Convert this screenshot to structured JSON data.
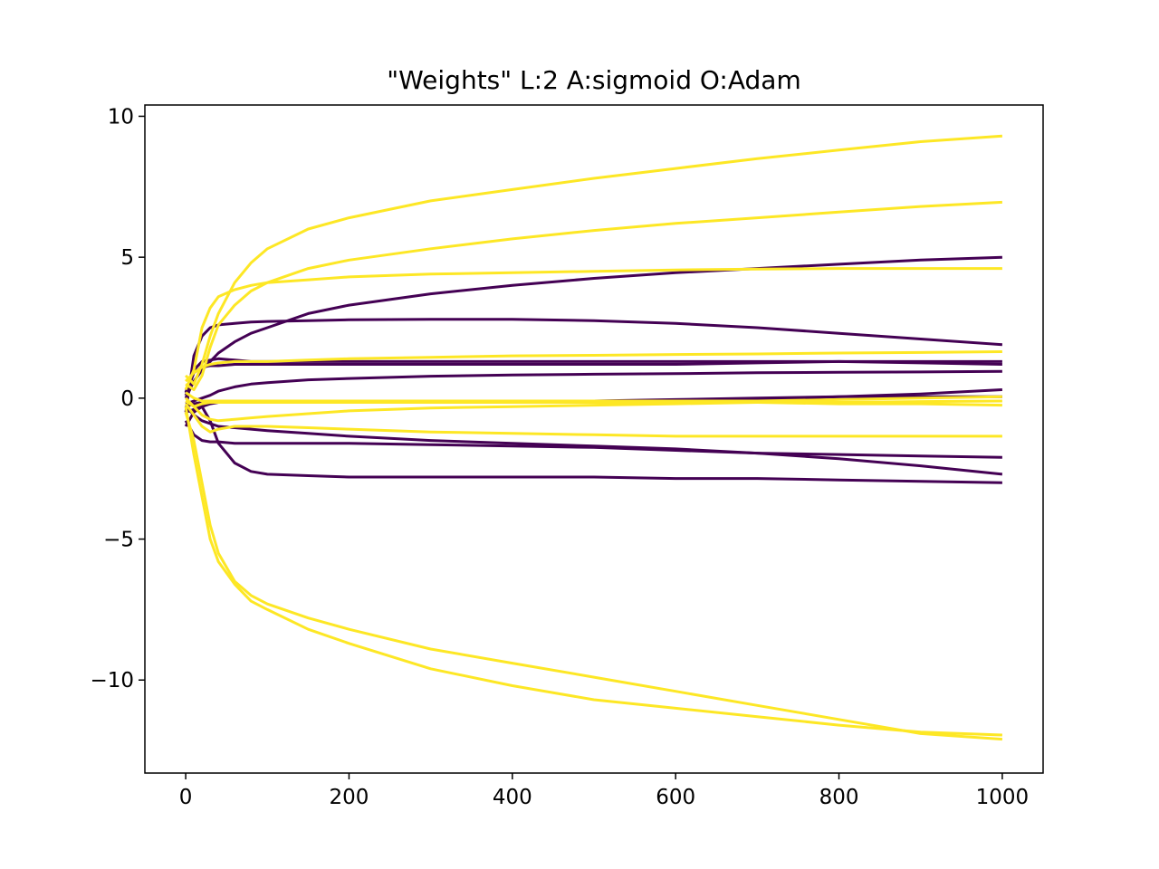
{
  "chart_data": {
    "type": "line",
    "title": "\"Weights\" L:2 A:sigmoid O:Adam",
    "xlabel": "",
    "ylabel": "",
    "xlim": [
      -50,
      1050
    ],
    "ylim": [
      -13.3,
      10.4
    ],
    "xticks": [
      0,
      200,
      400,
      600,
      800,
      1000
    ],
    "xtick_labels": [
      "0",
      "200",
      "400",
      "600",
      "800",
      "1000"
    ],
    "yticks": [
      10,
      5,
      0,
      -5,
      -10
    ],
    "ytick_labels": [
      "10",
      "5",
      "0",
      "−5",
      "−10"
    ],
    "grid": false,
    "legend": "none",
    "colors": {
      "purple": "#440154",
      "yellow": "#fde725"
    },
    "sample_x": [
      0,
      10,
      20,
      30,
      40,
      60,
      80,
      100,
      150,
      200,
      300,
      400,
      500,
      600,
      700,
      800,
      900,
      1000
    ],
    "series": [
      {
        "color": "purple",
        "values": [
          -0.5,
          1.5,
          2.2,
          2.5,
          2.6,
          2.65,
          2.7,
          2.72,
          2.75,
          2.78,
          2.8,
          2.8,
          2.75,
          2.65,
          2.5,
          2.3,
          2.1,
          1.9
        ]
      },
      {
        "color": "purple",
        "values": [
          0.0,
          0.6,
          1.0,
          1.3,
          1.6,
          2.0,
          2.3,
          2.5,
          3.0,
          3.3,
          3.7,
          4.0,
          4.25,
          4.45,
          4.6,
          4.75,
          4.9,
          5.0
        ]
      },
      {
        "color": "purple",
        "values": [
          0.2,
          1.0,
          1.3,
          1.35,
          1.4,
          1.35,
          1.3,
          1.3,
          1.3,
          1.3,
          1.3,
          1.3,
          1.3,
          1.3,
          1.3,
          1.3,
          1.25,
          1.2
        ]
      },
      {
        "color": "purple",
        "values": [
          0.1,
          0.9,
          1.1,
          1.15,
          1.15,
          1.2,
          1.2,
          1.2,
          1.2,
          1.2,
          1.2,
          1.2,
          1.2,
          1.2,
          1.25,
          1.3,
          1.3,
          1.3
        ]
      },
      {
        "color": "purple",
        "values": [
          -0.2,
          -0.1,
          0.0,
          0.1,
          0.25,
          0.4,
          0.5,
          0.55,
          0.65,
          0.7,
          0.78,
          0.82,
          0.85,
          0.87,
          0.9,
          0.92,
          0.93,
          0.95
        ]
      },
      {
        "color": "purple",
        "values": [
          -0.3,
          -0.2,
          -0.15,
          -0.15,
          -0.15,
          -0.15,
          -0.15,
          -0.15,
          -0.15,
          -0.15,
          -0.15,
          -0.15,
          -0.15,
          -0.12,
          -0.05,
          0.05,
          0.15,
          0.3
        ]
      },
      {
        "color": "purple",
        "values": [
          -0.5,
          -0.4,
          -0.3,
          -0.2,
          -0.15,
          -0.15,
          -0.15,
          -0.15,
          -0.15,
          -0.15,
          -0.1,
          -0.1,
          -0.1,
          -0.05,
          0.0,
          0.05,
          0.05,
          0.05
        ]
      },
      {
        "color": "purple",
        "values": [
          -0.3,
          -0.6,
          -0.8,
          -0.9,
          -1.0,
          -1.05,
          -1.1,
          -1.15,
          -1.25,
          -1.35,
          -1.5,
          -1.6,
          -1.7,
          -1.8,
          -1.95,
          -2.15,
          -2.4,
          -2.7
        ]
      },
      {
        "color": "purple",
        "values": [
          -0.8,
          -1.3,
          -1.5,
          -1.55,
          -1.55,
          -1.6,
          -1.6,
          -1.6,
          -1.6,
          -1.6,
          -1.65,
          -1.7,
          -1.75,
          -1.85,
          -1.95,
          -2.0,
          -2.05,
          -2.1
        ]
      },
      {
        "color": "purple",
        "values": [
          -1.0,
          -0.5,
          -0.3,
          -0.8,
          -1.6,
          -2.3,
          -2.6,
          -2.7,
          -2.75,
          -2.8,
          -2.8,
          -2.8,
          -2.8,
          -2.85,
          -2.85,
          -2.9,
          -2.95,
          -3.0
        ]
      },
      {
        "color": "yellow",
        "values": [
          0.8,
          0.5,
          1.2,
          2.2,
          3.0,
          4.1,
          4.8,
          5.3,
          6.0,
          6.4,
          7.0,
          7.4,
          7.8,
          8.15,
          8.5,
          8.8,
          9.1,
          9.3
        ]
      },
      {
        "color": "yellow",
        "values": [
          0.5,
          0.3,
          0.8,
          1.8,
          2.6,
          3.3,
          3.8,
          4.1,
          4.6,
          4.9,
          5.3,
          5.65,
          5.95,
          6.2,
          6.4,
          6.6,
          6.8,
          6.95
        ]
      },
      {
        "color": "yellow",
        "values": [
          0.3,
          1.0,
          2.5,
          3.2,
          3.6,
          3.85,
          4.0,
          4.1,
          4.2,
          4.3,
          4.4,
          4.45,
          4.5,
          4.55,
          4.58,
          4.6,
          4.6,
          4.6
        ]
      },
      {
        "color": "yellow",
        "values": [
          0.6,
          0.9,
          1.1,
          1.2,
          1.25,
          1.3,
          1.3,
          1.3,
          1.35,
          1.4,
          1.45,
          1.5,
          1.52,
          1.55,
          1.57,
          1.6,
          1.62,
          1.65
        ]
      },
      {
        "color": "yellow",
        "values": [
          0.2,
          0.0,
          -0.1,
          -0.1,
          -0.1,
          -0.1,
          -0.1,
          -0.1,
          -0.1,
          -0.1,
          -0.1,
          -0.1,
          -0.1,
          -0.1,
          -0.1,
          -0.05,
          0.0,
          0.05
        ]
      },
      {
        "color": "yellow",
        "values": [
          -0.1,
          -0.3,
          -0.2,
          -0.15,
          -0.15,
          -0.15,
          -0.15,
          -0.15,
          -0.15,
          -0.15,
          -0.15,
          -0.15,
          -0.15,
          -0.15,
          -0.15,
          -0.2,
          -0.2,
          -0.25
        ]
      },
      {
        "color": "yellow",
        "values": [
          0.0,
          -0.3,
          -0.6,
          -0.75,
          -0.8,
          -0.75,
          -0.7,
          -0.65,
          -0.55,
          -0.45,
          -0.35,
          -0.3,
          -0.25,
          -0.2,
          -0.15,
          -0.15,
          -0.12,
          -0.1
        ]
      },
      {
        "color": "yellow",
        "values": [
          -0.2,
          -0.6,
          -1.0,
          -1.2,
          -1.1,
          -1.0,
          -1.0,
          -1.0,
          -1.05,
          -1.1,
          -1.2,
          -1.25,
          -1.3,
          -1.35,
          -1.35,
          -1.35,
          -1.35,
          -1.35
        ]
      },
      {
        "color": "yellow",
        "values": [
          -0.5,
          -1.5,
          -3.0,
          -4.5,
          -5.5,
          -6.5,
          -7.0,
          -7.3,
          -7.8,
          -8.2,
          -8.9,
          -9.4,
          -9.9,
          -10.4,
          -10.9,
          -11.4,
          -11.9,
          -12.1
        ]
      },
      {
        "color": "yellow",
        "values": [
          -0.3,
          -2.0,
          -3.5,
          -5.0,
          -5.8,
          -6.6,
          -7.2,
          -7.5,
          -8.2,
          -8.7,
          -9.6,
          -10.2,
          -10.7,
          -11.0,
          -11.3,
          -11.6,
          -11.85,
          -11.95
        ]
      }
    ]
  }
}
